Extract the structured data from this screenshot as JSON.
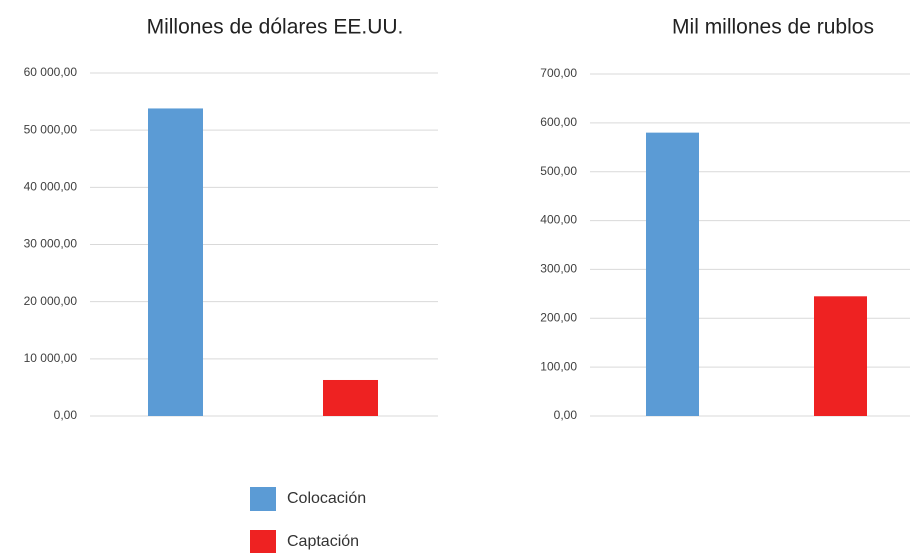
{
  "chart_data": [
    {
      "type": "bar",
      "title": "Millones de dólares EE.UU.",
      "values": [
        53800,
        6300
      ],
      "ylim": [
        0,
        60000
      ],
      "yticks": [
        {
          "value": 0,
          "label": "0,00"
        },
        {
          "value": 10000,
          "label": "10 000,00"
        },
        {
          "value": 20000,
          "label": "20 000,00"
        },
        {
          "value": 30000,
          "label": "30 000,00"
        },
        {
          "value": 40000,
          "label": "40 000,00"
        },
        {
          "value": 50000,
          "label": "50 000,00"
        },
        {
          "value": 60000,
          "label": "60 000,00"
        }
      ],
      "grid": true
    },
    {
      "type": "bar",
      "title": "Mil millones de rublos",
      "values": [
        580,
        245
      ],
      "ylim": [
        0,
        700
      ],
      "yticks": [
        {
          "value": 0,
          "label": "0,00"
        },
        {
          "value": 100,
          "label": "100,00"
        },
        {
          "value": 200,
          "label": "200,00"
        },
        {
          "value": 300,
          "label": "300,00"
        },
        {
          "value": 400,
          "label": "400,00"
        },
        {
          "value": 500,
          "label": "500,00"
        },
        {
          "value": 600,
          "label": "600,00"
        },
        {
          "value": 700,
          "label": "700,00"
        }
      ],
      "grid": true
    }
  ],
  "legend": {
    "labels": [
      "Colocación",
      "Captación"
    ],
    "colors": [
      "#5b9bd5",
      "#ee2222"
    ]
  }
}
